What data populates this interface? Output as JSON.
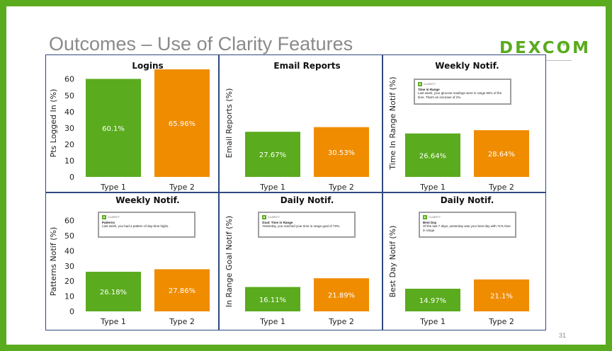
{
  "slide": {
    "title": "Outcomes – Use of Clarity Features",
    "logo": "DEXCOM",
    "logo_mark": "®",
    "page_number": "31"
  },
  "colors": {
    "type1": "#5aab1e",
    "type2": "#f08c00",
    "border": "#2e4a7e",
    "background": "#5aab1e"
  },
  "chart_data": [
    {
      "type": "bar",
      "title": "Logins",
      "ylabel": "Pts Logged In (%)",
      "categories": [
        "Type 1",
        "Type 2"
      ],
      "values": [
        60.1,
        65.96
      ],
      "labels": [
        "60.1%",
        "65.96%"
      ],
      "ylim": [
        0,
        65.96
      ],
      "yticks": [
        0,
        10,
        20,
        30,
        40,
        50,
        60
      ],
      "show_yticks": true
    },
    {
      "type": "bar",
      "title": "Email Reports",
      "ylabel": "Email Reports (%)",
      "categories": [
        "Type 1",
        "Type 2"
      ],
      "values": [
        27.67,
        30.53
      ],
      "labels": [
        "27.67%",
        "30.53%"
      ],
      "ylim": [
        0,
        65.96
      ],
      "show_yticks": false
    },
    {
      "type": "bar",
      "title": "Weekly Notif.",
      "ylabel": "Time In Range Notif (%)",
      "categories": [
        "Type 1",
        "Type 2"
      ],
      "values": [
        26.64,
        28.64
      ],
      "labels": [
        "26.64%",
        "28.64%"
      ],
      "ylim": [
        0,
        65.96
      ],
      "show_yticks": false,
      "notification": {
        "app": "CLARITY",
        "title": "Time in Range",
        "body": "Last week, your glucose readings were in range 65% of the time. That's an increase of 2%."
      }
    },
    {
      "type": "bar",
      "title": "Weekly Notif.",
      "ylabel": "Patterns Notif (%)",
      "categories": [
        "Type 1",
        "Type 2"
      ],
      "values": [
        26.18,
        27.86
      ],
      "labels": [
        "26.18%",
        "27.86%"
      ],
      "ylim": [
        0,
        65.96
      ],
      "yticks": [
        0,
        10,
        20,
        30,
        40,
        50,
        60
      ],
      "show_yticks": true,
      "notification": {
        "app": "CLARITY",
        "title": "Patterns",
        "body": "Last week, you had a pattern of day-time highs."
      }
    },
    {
      "type": "bar",
      "title": "Daily Notif.",
      "ylabel": "In Range Goal Notif (%)",
      "categories": [
        "Type 1",
        "Type 2"
      ],
      "values": [
        16.11,
        21.89
      ],
      "labels": [
        "16.11%",
        "21.89%"
      ],
      "ylim": [
        0,
        65.96
      ],
      "show_yticks": false,
      "notification": {
        "app": "CLARITY",
        "title": "Goal: Time in Range",
        "body": "Yesterday, you reached your time in range goal of 70%."
      }
    },
    {
      "type": "bar",
      "title": "Daily Notif.",
      "ylabel": "Best Day Notif (%)",
      "categories": [
        "Type 1",
        "Type 2"
      ],
      "values": [
        14.97,
        21.1
      ],
      "labels": [
        "14.97%",
        "21.1%"
      ],
      "ylim": [
        0,
        65.96
      ],
      "show_yticks": false,
      "notification": {
        "app": "CLARITY",
        "title": "Best Day",
        "body": "Of the last 7 days, yesterday was your best day with 71% time in range."
      }
    }
  ]
}
